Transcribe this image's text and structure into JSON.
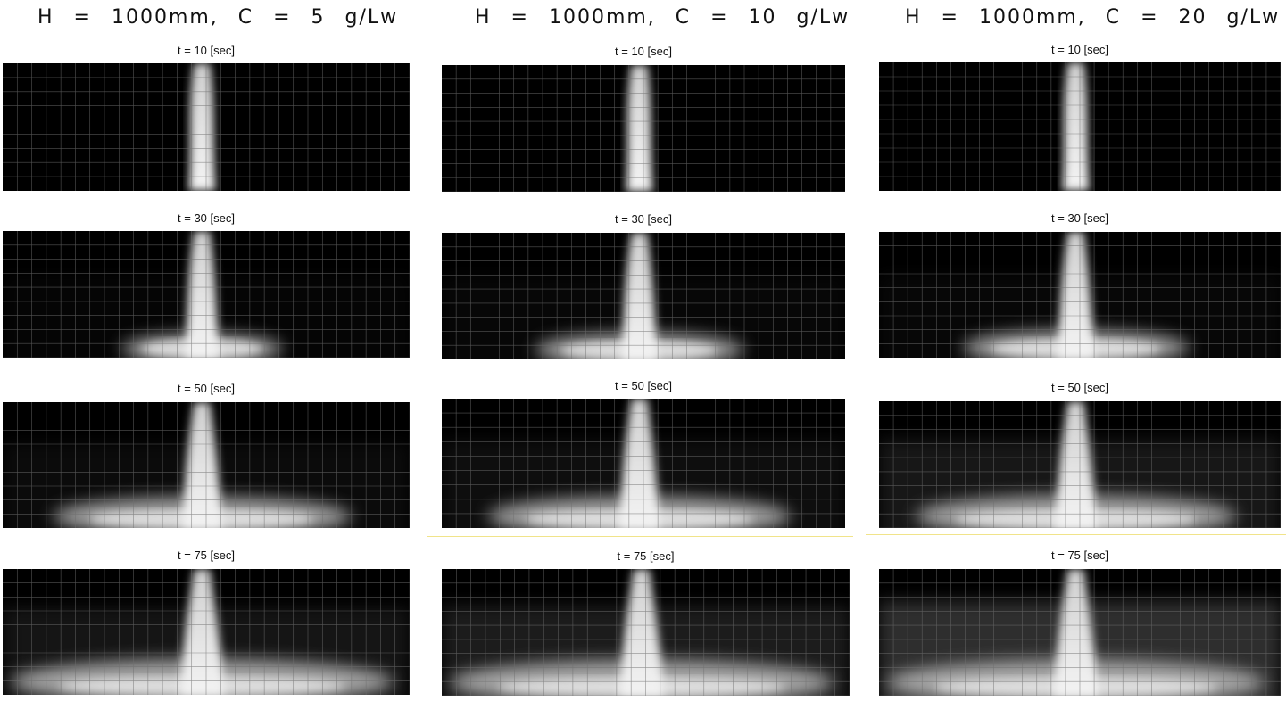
{
  "columns": [
    {
      "title": "H  =  1000mm,  C  =  5  g/Lw",
      "frames": [
        {
          "label": "t = 10 [sec]",
          "time_sec": 10,
          "spread": 0.0,
          "haze": 0.0
        },
        {
          "label": "t = 30 [sec]",
          "time_sec": 30,
          "spread": 0.42,
          "haze": 0.05
        },
        {
          "label": "t = 50 [sec]",
          "time_sec": 50,
          "spread": 0.78,
          "haze": 0.12
        },
        {
          "label": "t = 75 [sec]",
          "time_sec": 75,
          "spread": 1.0,
          "haze": 0.22
        }
      ]
    },
    {
      "title": "H  =  1000mm,  C  =  10  g/Lw",
      "frames": [
        {
          "label": "t = 10 [sec]",
          "time_sec": 10,
          "spread": 0.0,
          "haze": 0.0
        },
        {
          "label": "t = 30 [sec]",
          "time_sec": 30,
          "spread": 0.55,
          "haze": 0.07
        },
        {
          "label": "t = 50 [sec]",
          "time_sec": 50,
          "spread": 0.8,
          "haze": 0.15
        },
        {
          "label": "t = 75 [sec]",
          "time_sec": 75,
          "spread": 1.0,
          "haze": 0.3
        }
      ]
    },
    {
      "title": "H  =  1000mm,  C  =  20  g/Lw",
      "frames": [
        {
          "label": "t = 10 [sec]",
          "time_sec": 10,
          "spread": 0.0,
          "haze": 0.0
        },
        {
          "label": "t = 30 [sec]",
          "time_sec": 30,
          "spread": 0.6,
          "haze": 0.08
        },
        {
          "label": "t = 50 [sec]",
          "time_sec": 50,
          "spread": 0.85,
          "haze": 0.25
        },
        {
          "label": "t = 75 [sec]",
          "time_sec": 75,
          "spread": 1.0,
          "haze": 0.5
        }
      ]
    }
  ],
  "colors": {
    "background": "#ffffff",
    "frame": "#000000",
    "grid": "#6f6f6f",
    "plume": "#e6e6e6",
    "separator": "#f1e48a"
  }
}
